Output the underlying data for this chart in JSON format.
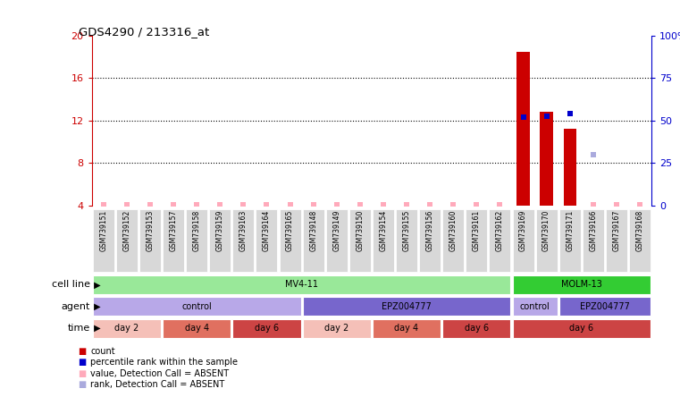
{
  "title": "GDS4290 / 213316_at",
  "samples": [
    "GSM739151",
    "GSM739152",
    "GSM739153",
    "GSM739157",
    "GSM739158",
    "GSM739159",
    "GSM739163",
    "GSM739164",
    "GSM739165",
    "GSM739148",
    "GSM739149",
    "GSM739150",
    "GSM739154",
    "GSM739155",
    "GSM739156",
    "GSM739160",
    "GSM739161",
    "GSM739162",
    "GSM739169",
    "GSM739170",
    "GSM739171",
    "GSM739166",
    "GSM739167",
    "GSM739168"
  ],
  "count_values": [
    null,
    null,
    null,
    null,
    null,
    null,
    null,
    null,
    null,
    null,
    null,
    null,
    null,
    null,
    null,
    null,
    null,
    null,
    18.5,
    12.8,
    11.2,
    null,
    null,
    null
  ],
  "absent_value_values": [
    4.1,
    4.1,
    4.1,
    4.1,
    4.1,
    4.1,
    4.1,
    4.1,
    4.1,
    4.1,
    4.1,
    4.1,
    4.1,
    4.1,
    4.1,
    4.1,
    4.1,
    4.1,
    null,
    null,
    null,
    4.1,
    4.1,
    4.1
  ],
  "rank_percentile": [
    null,
    null,
    null,
    null,
    null,
    null,
    null,
    null,
    null,
    null,
    null,
    null,
    null,
    null,
    null,
    null,
    null,
    null,
    52.0,
    52.5,
    54.0,
    null,
    null,
    null
  ],
  "absent_rank_percentile": [
    null,
    null,
    null,
    null,
    null,
    null,
    null,
    null,
    null,
    null,
    null,
    null,
    null,
    null,
    null,
    null,
    null,
    null,
    null,
    null,
    null,
    30.0,
    null,
    null
  ],
  "ylim": [
    4,
    20
  ],
  "y_ticks": [
    4,
    8,
    12,
    16,
    20
  ],
  "right_ylim": [
    0,
    100
  ],
  "right_ticks": [
    0,
    25,
    50,
    75,
    100
  ],
  "cell_line_groups": [
    {
      "label": "MV4-11",
      "start": 0,
      "end": 18,
      "color": "#99e899"
    },
    {
      "label": "MOLM-13",
      "start": 18,
      "end": 24,
      "color": "#33cc33"
    }
  ],
  "agent_groups": [
    {
      "label": "control",
      "start": 0,
      "end": 9,
      "color": "#b8a8e8"
    },
    {
      "label": "EPZ004777",
      "start": 9,
      "end": 18,
      "color": "#7766cc"
    },
    {
      "label": "control",
      "start": 18,
      "end": 20,
      "color": "#b8a8e8"
    },
    {
      "label": "EPZ004777",
      "start": 20,
      "end": 24,
      "color": "#7766cc"
    }
  ],
  "time_groups": [
    {
      "label": "day 2",
      "start": 0,
      "end": 3,
      "color": "#f5c0b8"
    },
    {
      "label": "day 4",
      "start": 3,
      "end": 6,
      "color": "#e07060"
    },
    {
      "label": "day 6",
      "start": 6,
      "end": 9,
      "color": "#cc4444"
    },
    {
      "label": "day 2",
      "start": 9,
      "end": 12,
      "color": "#f5c0b8"
    },
    {
      "label": "day 4",
      "start": 12,
      "end": 15,
      "color": "#e07060"
    },
    {
      "label": "day 6",
      "start": 15,
      "end": 18,
      "color": "#cc4444"
    },
    {
      "label": "day 6",
      "start": 18,
      "end": 24,
      "color": "#cc4444"
    }
  ],
  "bar_color": "#cc0000",
  "rank_dot_color": "#0000cc",
  "absent_value_color": "#ffaabb",
  "absent_rank_color": "#aaaadd",
  "grid_color": "#000000",
  "left_axis_color": "#cc0000",
  "right_axis_color": "#0000cc",
  "background_color": "#ffffff"
}
